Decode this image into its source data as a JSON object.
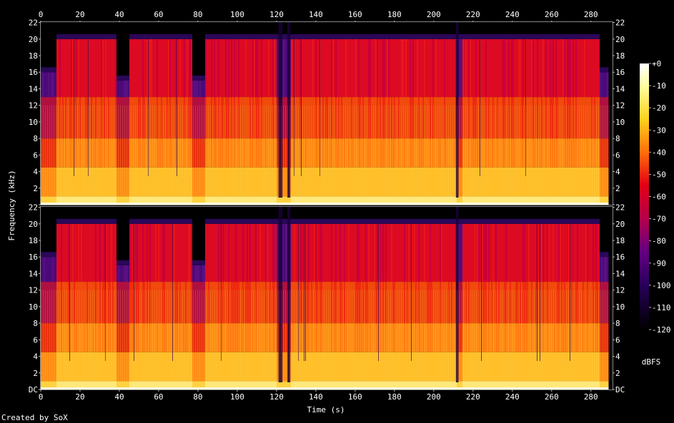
{
  "chart_data": {
    "type": "heatmap",
    "subtype": "spectrogram",
    "xlabel": "Time (s)",
    "ylabel": "Frequency (kHz)",
    "x_ticks": [
      0,
      20,
      40,
      60,
      80,
      100,
      120,
      140,
      160,
      180,
      200,
      220,
      240,
      260,
      280
    ],
    "xlim": [
      0,
      291
    ],
    "y_ticks": [
      "DC",
      "2",
      "4",
      "6",
      "8",
      "10",
      "12",
      "14",
      "16",
      "18",
      "20",
      "22"
    ],
    "ylim_khz": [
      0,
      22.05
    ],
    "channels": 2,
    "colorbar": {
      "label": "dBFS",
      "ticks": [
        "+0",
        "-10",
        "-20",
        "-30",
        "-40",
        "-50",
        "-60",
        "-70",
        "-80",
        "-90",
        "-100",
        "-110",
        "-120"
      ],
      "range_db": [
        -120,
        0
      ],
      "stops": [
        {
          "db": 0,
          "color": "#ffffff"
        },
        {
          "db": -10,
          "color": "#ffffa0"
        },
        {
          "db": -25,
          "color": "#ffd21e"
        },
        {
          "db": -40,
          "color": "#ff6e0a"
        },
        {
          "db": -55,
          "color": "#e10014"
        },
        {
          "db": -70,
          "color": "#b4004b"
        },
        {
          "db": -85,
          "color": "#640082"
        },
        {
          "db": -100,
          "color": "#28005a"
        },
        {
          "db": -120,
          "color": "#000000"
        }
      ]
    },
    "quiet_segments_s": [
      [
        0,
        8
      ],
      [
        38,
        45
      ],
      [
        77,
        83
      ],
      [
        120,
        127
      ],
      [
        211,
        214
      ],
      [
        284,
        291
      ]
    ],
    "cutoff_khz_by_segment": [
      {
        "t": [
          0,
          8
        ],
        "khz": 16
      },
      {
        "t": [
          8,
          38
        ],
        "khz": 20
      },
      {
        "t": [
          38,
          45
        ],
        "khz": 15
      },
      {
        "t": [
          45,
          77
        ],
        "khz": 20
      },
      {
        "t": [
          77,
          83
        ],
        "khz": 15
      },
      {
        "t": [
          83,
          284
        ],
        "khz": 20
      },
      {
        "t": [
          284,
          291
        ],
        "khz": 16
      }
    ]
  },
  "footer": {
    "credit": "Created by SoX"
  }
}
